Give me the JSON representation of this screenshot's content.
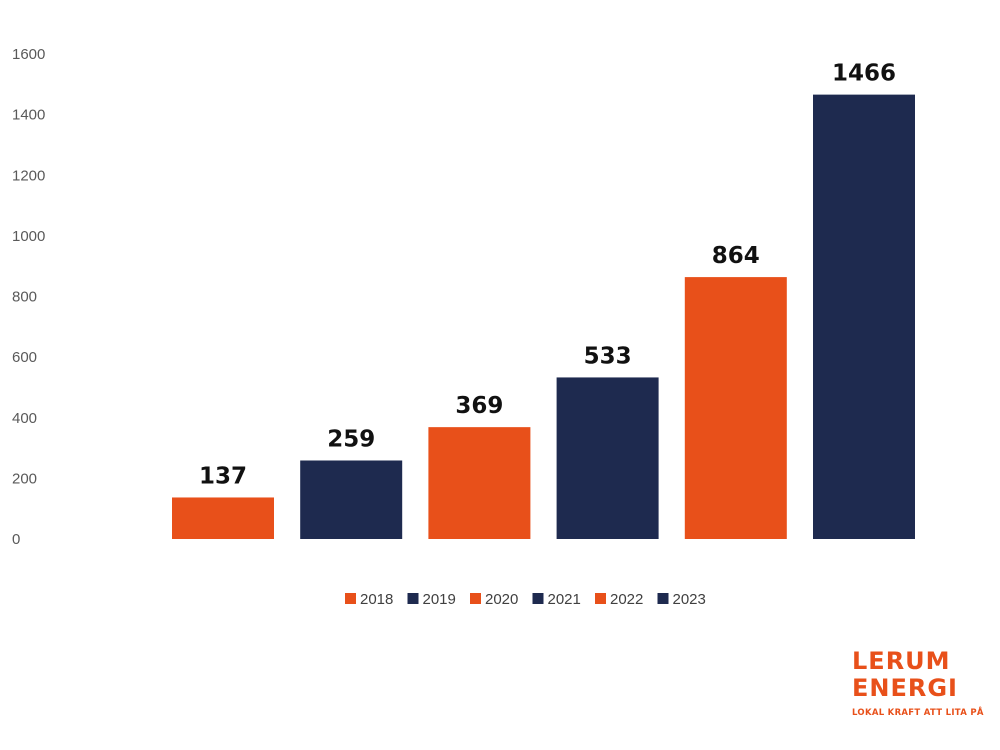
{
  "chart_data": {
    "type": "bar",
    "categories": [
      "2018",
      "2019",
      "2020",
      "2021",
      "2022",
      "2023"
    ],
    "values": [
      137,
      259,
      369,
      533,
      864,
      1466
    ],
    "colors": [
      "#e8501a",
      "#1e2a4f",
      "#e8501a",
      "#1e2a4f",
      "#e8501a",
      "#1e2a4f"
    ],
    "yticks": [
      "0",
      "200",
      "400",
      "600",
      "800",
      "1000",
      "1200",
      "1400",
      "1600"
    ],
    "ylim": [
      0,
      1600
    ],
    "legend": [
      "2018",
      "2019",
      "2020",
      "2021",
      "2022",
      "2023"
    ],
    "legend_position": "bottom",
    "grid": false,
    "data_labels": true
  },
  "logo": {
    "line1": "LERUM",
    "line2": "ENERGI",
    "tagline": "LOKAL KRAFT ATT LITA PÅ"
  }
}
